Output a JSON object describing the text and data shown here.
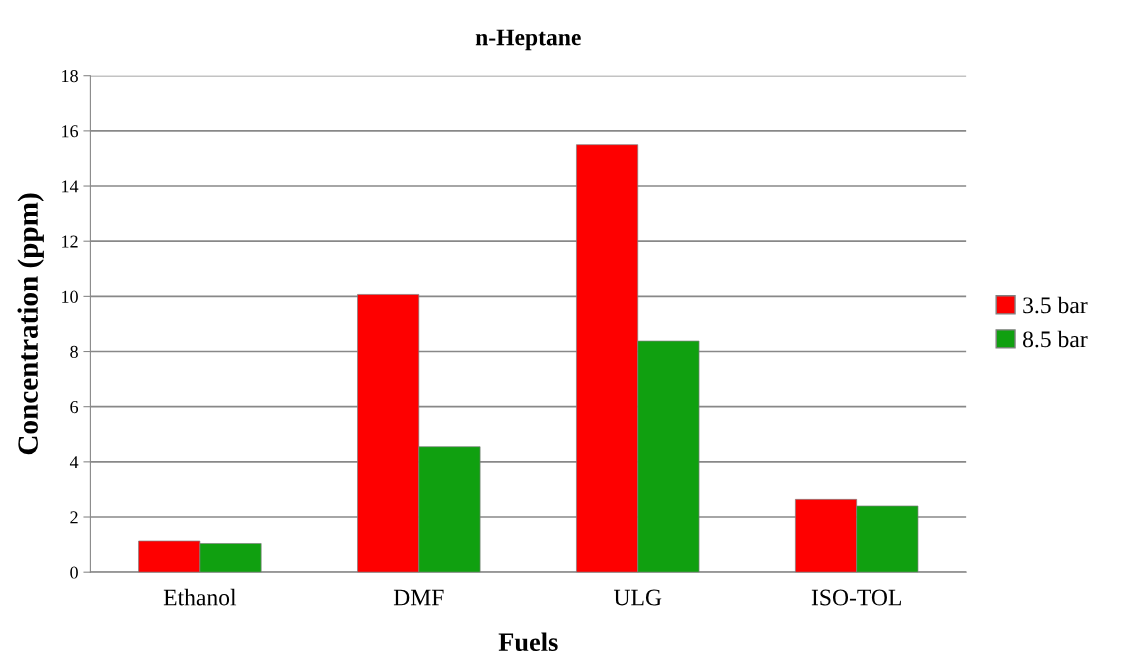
{
  "chart_data": {
    "type": "bar",
    "title": "n-Heptane",
    "xlabel": "Fuels",
    "ylabel": "Concentration (ppm)",
    "categories": [
      "Ethanol",
      "DMF",
      "ULG",
      "ISO-TOL"
    ],
    "series": [
      {
        "name": "3.5 bar",
        "color": "#fe0000",
        "values": [
          1.13,
          10.07,
          15.5,
          2.64
        ]
      },
      {
        "name": "8.5 bar",
        "color": "#10a010",
        "values": [
          1.04,
          4.55,
          8.38,
          2.4
        ]
      }
    ],
    "ylim": [
      0,
      18
    ],
    "yticks": [
      0,
      2,
      4,
      6,
      8,
      10,
      12,
      14,
      16,
      18
    ],
    "grid": "y",
    "legend": "right"
  }
}
